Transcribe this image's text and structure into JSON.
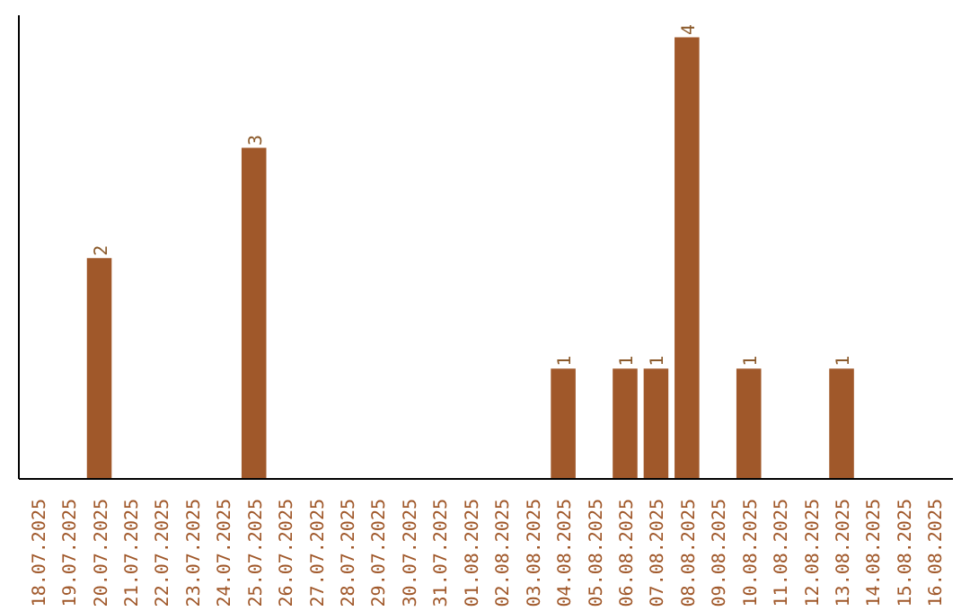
{
  "chart_data": {
    "type": "bar",
    "categories": [
      "18.07.2025",
      "19.07.2025",
      "20.07.2025",
      "21.07.2025",
      "22.07.2025",
      "23.07.2025",
      "24.07.2025",
      "25.07.2025",
      "26.07.2025",
      "27.07.2025",
      "28.07.2025",
      "29.07.2025",
      "30.07.2025",
      "31.07.2025",
      "01.08.2025",
      "02.08.2025",
      "03.08.2025",
      "04.08.2025",
      "05.08.2025",
      "06.08.2025",
      "07.08.2025",
      "08.08.2025",
      "09.08.2025",
      "10.08.2025",
      "11.08.2025",
      "12.08.2025",
      "13.08.2025",
      "14.08.2025",
      "15.08.2025",
      "16.08.2025"
    ],
    "values": [
      0,
      0,
      2,
      0,
      0,
      0,
      0,
      3,
      0,
      0,
      0,
      0,
      0,
      0,
      0,
      0,
      0,
      1,
      0,
      1,
      1,
      4,
      0,
      1,
      0,
      0,
      1,
      0,
      0,
      0
    ],
    "value_labels": [
      null,
      null,
      "2",
      null,
      null,
      null,
      null,
      "3",
      null,
      null,
      null,
      null,
      null,
      null,
      null,
      null,
      null,
      "1",
      null,
      "1",
      "1",
      "4",
      null,
      "1",
      null,
      null,
      "1",
      null,
      null,
      null
    ],
    "color": "#a0582a",
    "grid": false
  }
}
